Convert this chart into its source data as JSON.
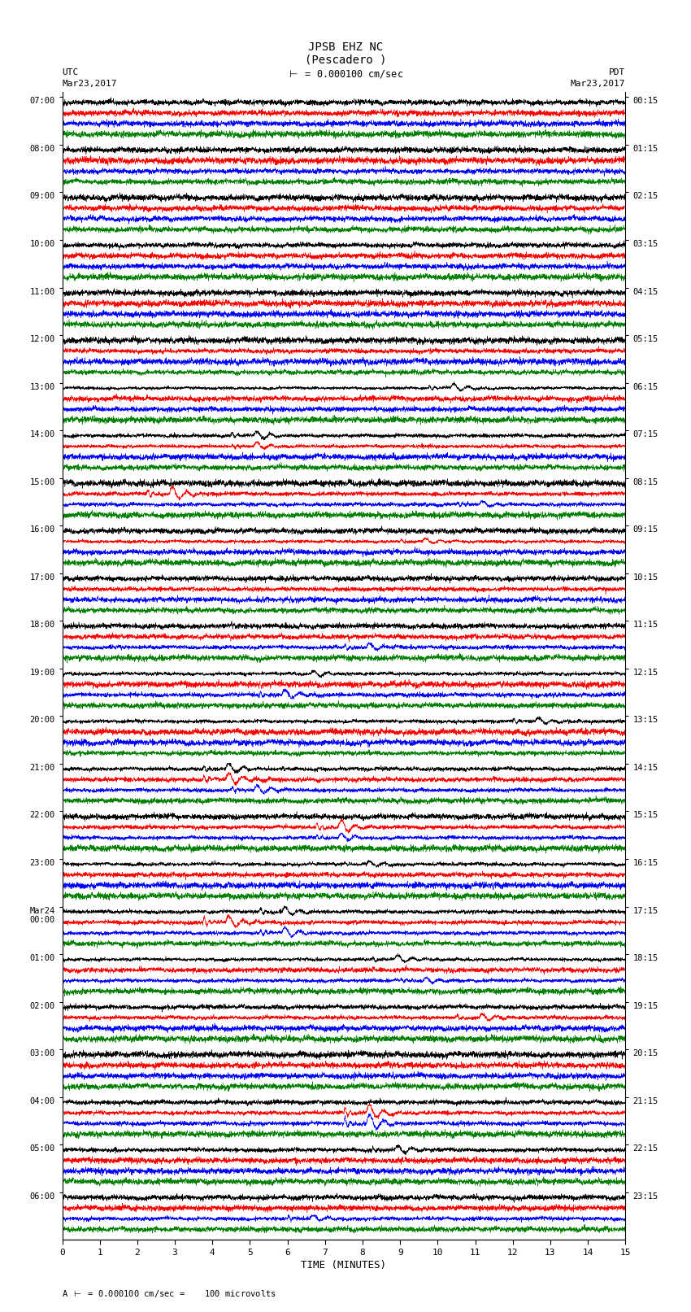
{
  "title_line1": "JPSB EHZ NC",
  "title_line2": "(Pescadero )",
  "scale_text": "= 0.000100 cm/sec",
  "utc_label": "UTC",
  "utc_date": "Mar23,2017",
  "pdt_label": "PDT",
  "pdt_date": "Mar23,2017",
  "xlabel": "TIME (MINUTES)",
  "footnote": "= 0.000100 cm/sec =    100 microvolts",
  "x_ticks": [
    0,
    1,
    2,
    3,
    4,
    5,
    6,
    7,
    8,
    9,
    10,
    11,
    12,
    13,
    14,
    15
  ],
  "x_min": 0,
  "x_max": 15,
  "left_times": [
    "07:00",
    "08:00",
    "09:00",
    "10:00",
    "11:00",
    "12:00",
    "13:00",
    "14:00",
    "15:00",
    "16:00",
    "17:00",
    "18:00",
    "19:00",
    "20:00",
    "21:00",
    "22:00",
    "23:00",
    "Mar24\n00:00",
    "01:00",
    "02:00",
    "03:00",
    "04:00",
    "05:00",
    "06:00"
  ],
  "right_times": [
    "00:15",
    "01:15",
    "02:15",
    "03:15",
    "04:15",
    "05:15",
    "06:15",
    "07:15",
    "08:15",
    "09:15",
    "10:15",
    "11:15",
    "12:15",
    "13:15",
    "14:15",
    "15:15",
    "16:15",
    "17:15",
    "18:15",
    "19:15",
    "20:15",
    "21:15",
    "22:15",
    "23:15"
  ],
  "n_rows": 24,
  "traces_per_row": 4,
  "colors": [
    "black",
    "red",
    "blue",
    "green"
  ],
  "bg_color": "white",
  "dpi": 100,
  "fig_width": 8.5,
  "fig_height": 16.13
}
